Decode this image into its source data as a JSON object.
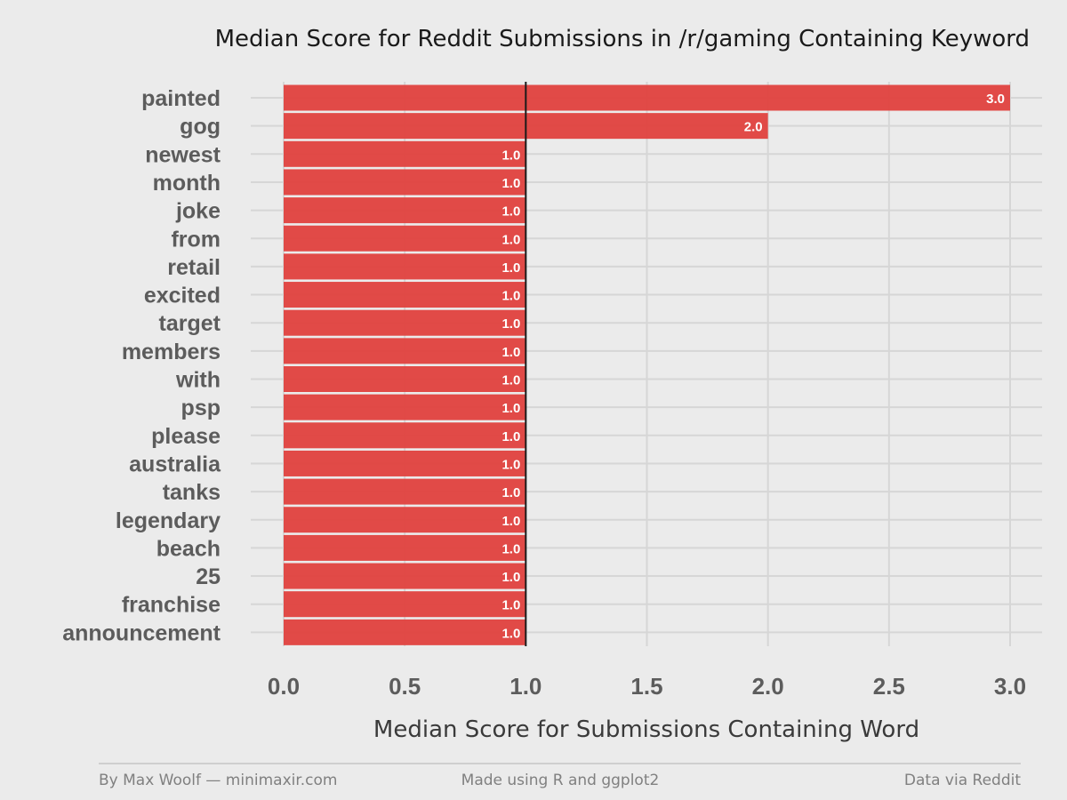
{
  "colors": {
    "background": "#ebebeb",
    "bar": "#e0413e",
    "grid": "#d6d6d6",
    "reference_line": "#1a1a1a",
    "bar_label": "#ffffff"
  },
  "chart_data": {
    "type": "bar",
    "orientation": "horizontal",
    "title": "Median Score for Reddit Submissions in /r/gaming Containing Keyword",
    "xlabel": "Median Score for Submissions Containing Word",
    "ylabel": "",
    "categories": [
      "painted",
      "gog",
      "newest",
      "month",
      "joke",
      "from",
      "retail",
      "excited",
      "target",
      "members",
      "with",
      "psp",
      "please",
      "australia",
      "tanks",
      "legendary",
      "beach",
      "25",
      "franchise",
      "announcement"
    ],
    "values": [
      3.0,
      2.0,
      1.0,
      1.0,
      1.0,
      1.0,
      1.0,
      1.0,
      1.0,
      1.0,
      1.0,
      1.0,
      1.0,
      1.0,
      1.0,
      1.0,
      1.0,
      1.0,
      1.0,
      1.0
    ],
    "value_labels": [
      "3.0",
      "2.0",
      "1.0",
      "1.0",
      "1.0",
      "1.0",
      "1.0",
      "1.0",
      "1.0",
      "1.0",
      "1.0",
      "1.0",
      "1.0",
      "1.0",
      "1.0",
      "1.0",
      "1.0",
      "1.0",
      "1.0",
      "1.0"
    ],
    "xlim": [
      0,
      3
    ],
    "xticks": [
      0,
      0.5,
      1,
      1.5,
      2,
      2.5,
      3
    ],
    "xtick_labels": [
      "0.0",
      "0.5",
      "1.0",
      "1.5",
      "2.0",
      "2.5",
      "3.0"
    ],
    "reference_line": 1.0,
    "grid": true,
    "legend": "none"
  },
  "footer": {
    "left": "By Max Woolf — minimaxir.com",
    "center": "Made using R and ggplot2",
    "right": "Data via Reddit"
  }
}
